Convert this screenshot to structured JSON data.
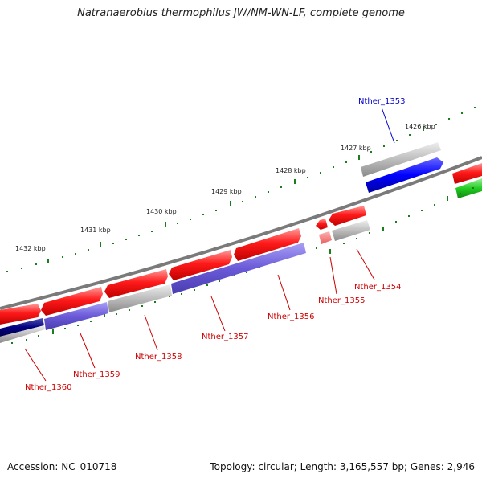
{
  "title": "Natranaerobius thermophilus JW/NM-WN-LF, complete genome",
  "footer": {
    "accession": "Accession: NC_010718",
    "summary": "Topology: circular; Length: 3,165,557 bp; Genes: 2,946"
  },
  "scale_labels": [
    "1426 kbp",
    "1427 kbp",
    "1428 kbp",
    "1429 kbp",
    "1430 kbp",
    "1431 kbp",
    "1432 kbp"
  ],
  "gene_labels": [
    "Nther_1353",
    "Nther_1354",
    "Nther_1355",
    "Nther_1356",
    "Nther_1357",
    "Nther_1358",
    "Nther_1359",
    "Nther_1360"
  ],
  "colors": {
    "forward_cds": "#ff0000",
    "reverse_cds": "#7b68ee",
    "rna_or_other": "#b0b0b0",
    "selected_gene": "#0000ff",
    "other_feature": "#22cc22",
    "ticks": "#1a7f1a",
    "backbone": "#808080",
    "label_red": "#cc0000",
    "label_blue": "#0000cc"
  }
}
